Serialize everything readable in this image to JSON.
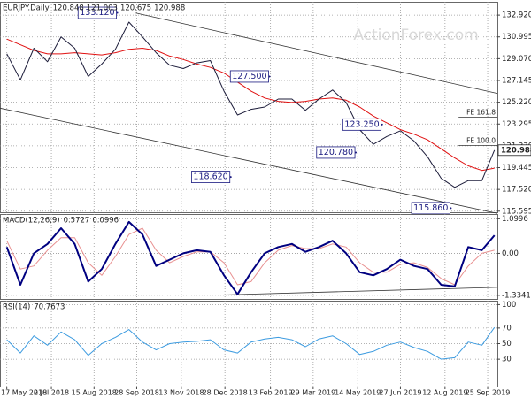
{
  "chart_data": [
    {
      "type": "line",
      "title": "EURJPY.Daily",
      "header_values": [
        120.848,
        121.003,
        120.675,
        120.988
      ],
      "watermark": "ActionForex.com",
      "xlim": [
        "2018-05-10",
        "2019-10-05"
      ],
      "x": [
        "2018-05-17",
        "2018-05-31",
        "2018-06-14",
        "2018-06-28",
        "2018-07-12",
        "2018-07-26",
        "2018-08-09",
        "2018-08-23",
        "2018-09-06",
        "2018-09-20",
        "2018-10-04",
        "2018-10-18",
        "2018-11-01",
        "2018-11-15",
        "2018-11-29",
        "2018-12-13",
        "2018-12-27",
        "2019-01-10",
        "2019-01-24",
        "2019-02-07",
        "2019-02-21",
        "2019-03-07",
        "2019-03-21",
        "2019-04-04",
        "2019-04-18",
        "2019-05-02",
        "2019-05-16",
        "2019-05-30",
        "2019-06-13",
        "2019-06-27",
        "2019-07-11",
        "2019-07-25",
        "2019-08-08",
        "2019-08-22",
        "2019-09-05",
        "2019-09-19",
        "2019-10-02"
      ],
      "series": [
        {
          "color": "#e01010",
          "values": [
            130.8,
            130.3,
            129.8,
            129.5,
            129.5,
            129.6,
            129.5,
            129.4,
            129.6,
            129.9,
            130.0,
            129.8,
            129.3,
            129.0,
            128.6,
            128.3,
            127.8,
            127.0,
            126.2,
            125.6,
            125.3,
            125.2,
            125.3,
            125.5,
            125.6,
            125.4,
            124.8,
            124.0,
            123.4,
            122.8,
            122.4,
            121.9,
            121.1,
            120.3,
            119.6,
            119.2,
            119.4
          ]
        },
        {
          "color": "#1c1c3a",
          "values": [
            129.5,
            127.2,
            130.0,
            128.8,
            131.0,
            130.0,
            127.5,
            128.6,
            129.9,
            132.3,
            131.0,
            129.6,
            128.5,
            128.2,
            128.7,
            128.9,
            126.2,
            124.1,
            124.6,
            124.8,
            125.5,
            125.5,
            124.5,
            125.5,
            126.3,
            125.2,
            122.8,
            121.5,
            122.2,
            122.7,
            121.8,
            120.4,
            118.5,
            117.7,
            118.3,
            118.3,
            120.988
          ]
        }
      ],
      "ylim": [
        115.5,
        134.1
      ],
      "yticks": [
        115.595,
        {
          "value": 117.52,
          "label": "117.520"
        },
        119.445,
        {
          "value": 121.37,
          "label": "121.370"
        },
        123.295,
        {
          "value": 125.22,
          "label": "125.220"
        },
        127.145,
        {
          "value": 129.07,
          "label": "129.070"
        },
        130.995,
        {
          "value": 132.92,
          "label": "132.920"
        }
      ],
      "grid": true,
      "annotations": [
        {
          "x": "2018-09-08",
          "value": 133.12,
          "label": "133.120"
        },
        {
          "x": "2019-02-12",
          "value": 127.5,
          "label": "127.500"
        },
        {
          "x": "2019-06-08",
          "value": 123.25,
          "label": "123.250"
        },
        {
          "x": "2019-05-12",
          "value": 120.78,
          "label": "120.780"
        },
        {
          "x": "2019-01-03",
          "value": 118.62,
          "label": "118.620"
        },
        {
          "x": "2019-08-18",
          "value": 115.86,
          "label": "115.860"
        }
      ],
      "levels": [
        {
          "x": "2019-08-26",
          "value": 123.9,
          "label": "FE 161.8"
        },
        {
          "x": "2019-08-26",
          "value": 121.4,
          "label": "FE 100.0"
        }
      ],
      "trend_lines": [
        {
          "x": [
            "2018-09-27",
            "2019-10-05"
          ],
          "y": [
            133.1,
            126.0
          ]
        },
        {
          "x": [
            "2018-05-10",
            "2019-10-05"
          ],
          "y": [
            124.7,
            115.4
          ]
        }
      ]
    },
    {
      "type": "line",
      "title": "MACD(12,26,9)",
      "header_values": [
        0.5727,
        0.0996
      ],
      "xlim": [
        "2018-05-10",
        "2019-10-05"
      ],
      "x": [
        "2018-05-17",
        "2018-05-31",
        "2018-06-14",
        "2018-06-28",
        "2018-07-12",
        "2018-07-26",
        "2018-08-09",
        "2018-08-23",
        "2018-09-06",
        "2018-09-20",
        "2018-10-04",
        "2018-10-18",
        "2018-11-01",
        "2018-11-15",
        "2018-11-29",
        "2018-12-13",
        "2018-12-27",
        "2019-01-10",
        "2019-01-24",
        "2019-02-07",
        "2019-02-21",
        "2019-03-07",
        "2019-03-21",
        "2019-04-04",
        "2019-04-18",
        "2019-05-02",
        "2019-05-16",
        "2019-05-30",
        "2019-06-13",
        "2019-06-27",
        "2019-07-11",
        "2019-07-25",
        "2019-08-08",
        "2019-08-22",
        "2019-09-05",
        "2019-09-19",
        "2019-10-02"
      ],
      "series": [
        {
          "color": "#e89090",
          "values": [
            0.4,
            -0.5,
            -0.4,
            0.1,
            0.5,
            0.5,
            -0.3,
            -0.7,
            -0.1,
            0.6,
            0.8,
            0.1,
            -0.3,
            -0.1,
            0.05,
            0.05,
            -0.3,
            -1.0,
            -0.9,
            -0.3,
            0.1,
            0.25,
            0.15,
            0.15,
            0.3,
            0.2,
            -0.3,
            -0.6,
            -0.6,
            -0.35,
            -0.3,
            -0.45,
            -0.8,
            -1.0,
            -0.4,
            0.0,
            0.0996
          ]
        },
        {
          "color": "#000080",
          "values": [
            0.2,
            -1.0,
            0.0,
            0.3,
            0.8,
            0.3,
            -0.9,
            -0.5,
            0.3,
            1.0,
            0.6,
            -0.4,
            -0.2,
            0.0,
            0.1,
            0.05,
            -0.7,
            -1.3,
            -0.6,
            0.0,
            0.2,
            0.3,
            0.05,
            0.2,
            0.4,
            0.0,
            -0.6,
            -0.7,
            -0.5,
            -0.2,
            -0.4,
            -0.5,
            -1.0,
            -1.05,
            0.2,
            0.1,
            0.5727
          ]
        }
      ],
      "ylim": [
        -1.45,
        1.25
      ],
      "yticks": [
        1.0996,
        {
          "value": 0,
          "label": "0.00"
        },
        -1.3341
      ],
      "grid": true,
      "trend_lines": [
        {
          "x": [
            "2018-12-28",
            "2019-10-05"
          ],
          "y": [
            -1.32,
            -1.08
          ]
        }
      ]
    },
    {
      "type": "line",
      "title": "RSI(14)",
      "header_values": [
        70.7673
      ],
      "xlim": [
        "2018-05-10",
        "2019-10-05"
      ],
      "x": [
        "2018-05-17",
        "2018-05-31",
        "2018-06-14",
        "2018-06-28",
        "2018-07-12",
        "2018-07-26",
        "2018-08-09",
        "2018-08-23",
        "2018-09-06",
        "2018-09-20",
        "2018-10-04",
        "2018-10-18",
        "2018-11-01",
        "2018-11-15",
        "2018-11-29",
        "2018-12-13",
        "2018-12-27",
        "2019-01-10",
        "2019-01-24",
        "2019-02-07",
        "2019-02-21",
        "2019-03-07",
        "2019-03-21",
        "2019-04-04",
        "2019-04-18",
        "2019-05-02",
        "2019-05-16",
        "2019-05-30",
        "2019-06-13",
        "2019-06-27",
        "2019-07-11",
        "2019-07-25",
        "2019-08-08",
        "2019-08-22",
        "2019-09-05",
        "2019-09-19",
        "2019-10-02"
      ],
      "series": [
        {
          "color": "#3c9be0",
          "values": [
            55,
            38,
            60,
            48,
            65,
            55,
            35,
            50,
            58,
            68,
            52,
            42,
            50,
            52,
            53,
            55,
            42,
            38,
            52,
            56,
            58,
            55,
            46,
            56,
            60,
            50,
            36,
            40,
            48,
            52,
            45,
            40,
            30,
            32,
            52,
            48,
            70.7673
          ]
        }
      ],
      "ylim": [
        -5,
        105
      ],
      "yticks": [
        30,
        50,
        70,
        100
      ],
      "grid": true,
      "xticks": [
        {
          "value": "2018-05-17",
          "label": "17 May 2018"
        },
        {
          "value": "2018-07-02",
          "label": "2 Jul 2018"
        },
        {
          "value": "2018-08-15",
          "label": "15 Aug 2018"
        },
        {
          "value": "2018-09-28",
          "label": "28 Sep 2018"
        },
        {
          "value": "2018-11-13",
          "label": "13 Nov 2018"
        },
        {
          "value": "2018-12-28",
          "label": "28 Dec 2018"
        },
        {
          "value": "2019-02-13",
          "label": "13 Feb 2019"
        },
        {
          "value": "2019-03-29",
          "label": "29 Mar 2019"
        },
        {
          "value": "2019-05-14",
          "label": "14 May 2019"
        },
        {
          "value": "2019-06-27",
          "label": "27 Jun 2019"
        },
        {
          "value": "2019-08-12",
          "label": "12 Aug 2019"
        },
        {
          "value": "2019-09-25",
          "label": "25 Sep 2019"
        }
      ]
    }
  ]
}
